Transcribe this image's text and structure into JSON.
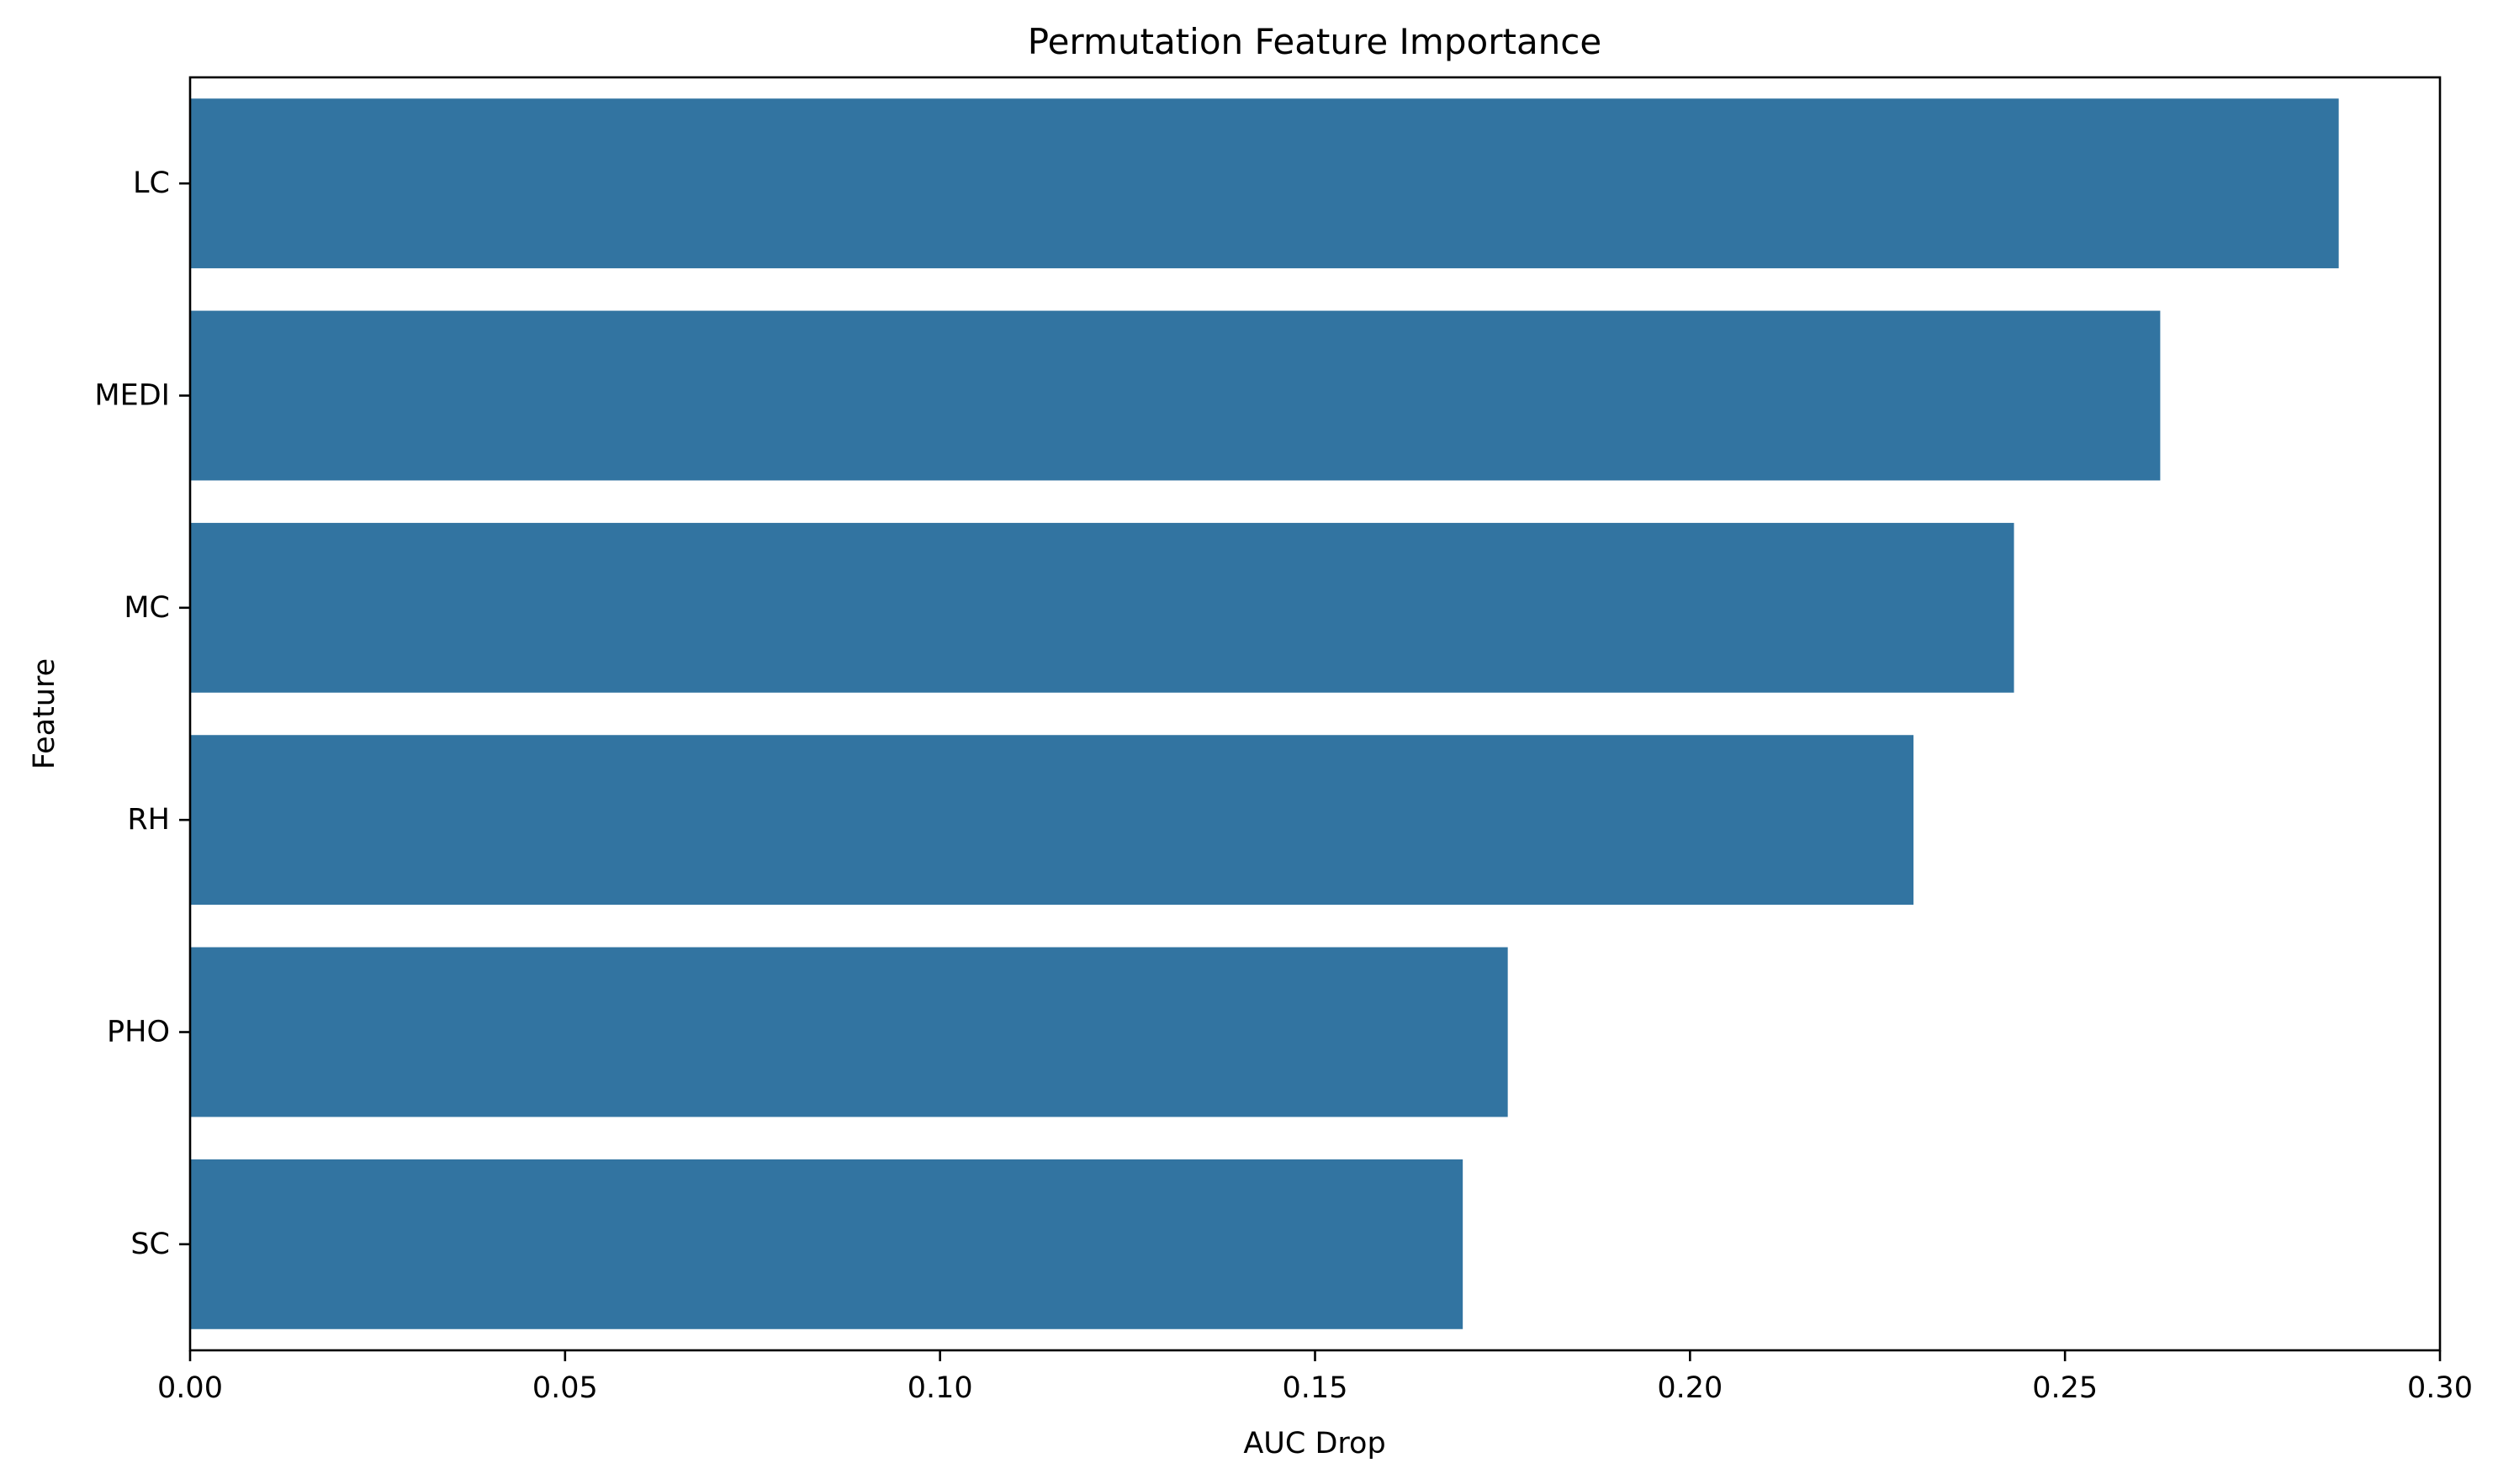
{
  "chart_data": {
    "type": "bar",
    "orientation": "horizontal",
    "title": "Permutation Feature Importance",
    "xlabel": "AUC Drop",
    "ylabel": "Feature",
    "categories": [
      "LC",
      "MEDI",
      "MC",
      "RH",
      "PHO",
      "SC"
    ],
    "values": [
      0.2865,
      0.2627,
      0.2432,
      0.2298,
      0.1757,
      0.1697
    ],
    "xlim": [
      0,
      0.3
    ],
    "xticks": [
      0.0,
      0.05,
      0.1,
      0.15,
      0.2,
      0.25,
      0.3
    ],
    "xtick_labels": [
      "0.00",
      "0.05",
      "0.10",
      "0.15",
      "0.20",
      "0.25",
      "0.30"
    ],
    "grid": false,
    "legend": "none",
    "bar_color": "#3274a1"
  }
}
